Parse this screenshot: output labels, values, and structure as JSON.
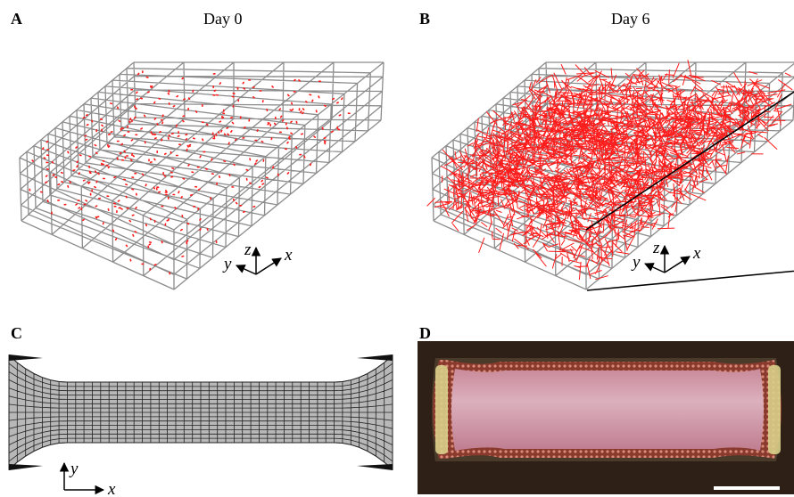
{
  "panels": [
    {
      "label": "A",
      "title": "Day 0",
      "axes": {
        "z": "z",
        "y": "y",
        "x": "x"
      }
    },
    {
      "label": "B",
      "title": "Day 6",
      "axes": {
        "z": "z",
        "y": "y",
        "x": "x"
      }
    },
    {
      "label": "C",
      "axes": {
        "y": "y",
        "x": "x"
      }
    },
    {
      "label": "D"
    }
  ]
}
